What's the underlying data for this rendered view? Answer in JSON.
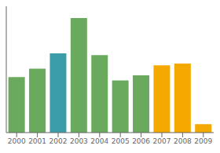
{
  "chart_data": {
    "type": "bar",
    "categories": [
      "2000",
      "2001",
      "2002",
      "2003",
      "2004",
      "2005",
      "2006",
      "2007",
      "2008",
      "2009"
    ],
    "values": [
      33,
      38,
      47,
      68,
      46,
      31,
      34,
      40,
      41,
      5
    ],
    "colors": [
      "#6aaa5e",
      "#6aaa5e",
      "#3a9da8",
      "#6aaa5e",
      "#6aaa5e",
      "#6aaa5e",
      "#6aaa5e",
      "#f5a800",
      "#f5a800",
      "#f5a800"
    ],
    "ylim": [
      0,
      75
    ],
    "grid": false,
    "tick_labels": "x"
  }
}
